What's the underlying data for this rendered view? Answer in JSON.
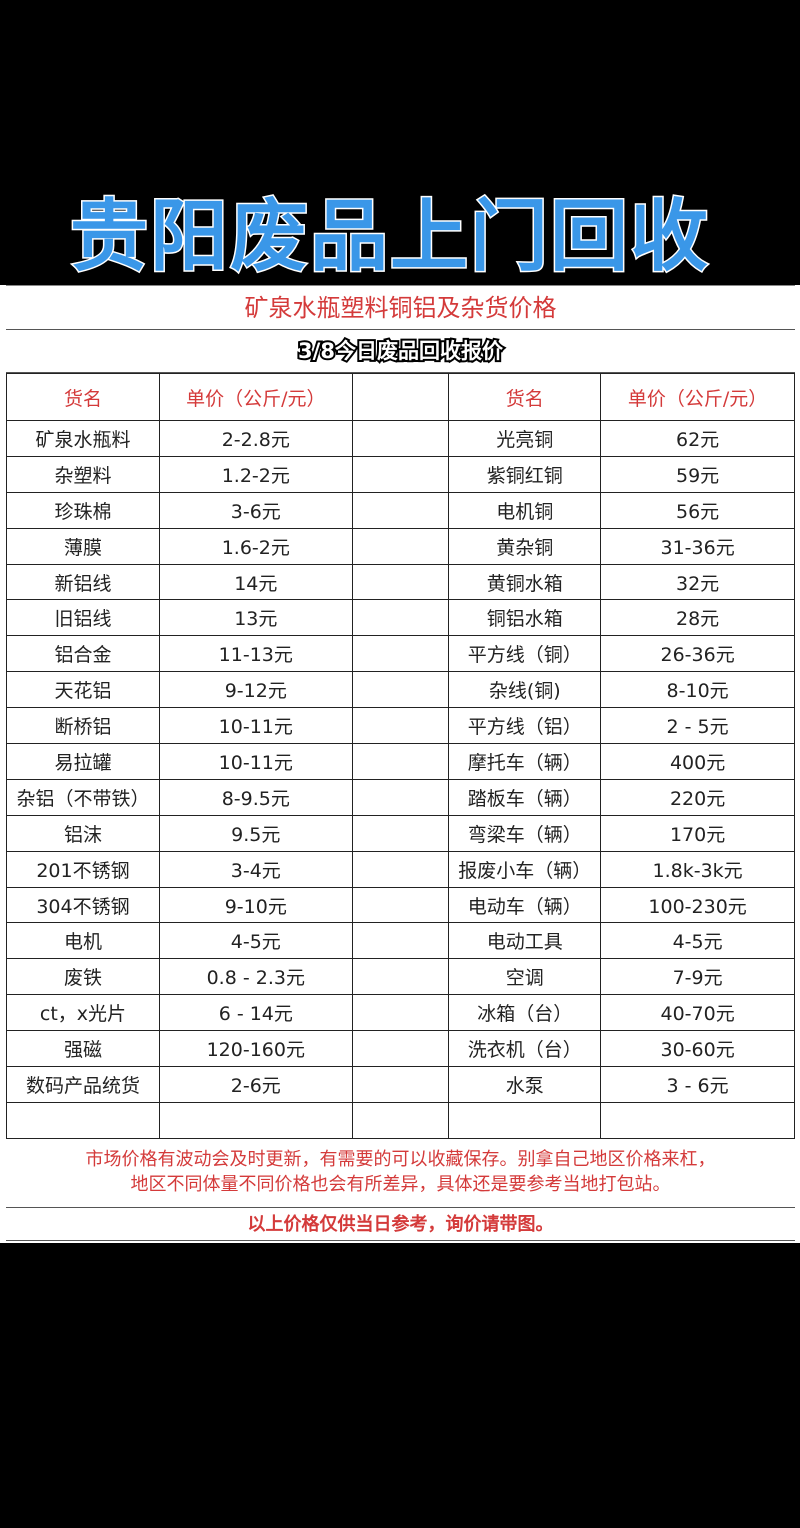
{
  "banner": "贵阳废品上门回收",
  "title": "矿泉水瓶塑料铜铝及杂货价格",
  "subtitle": "3/8今日废品回收报价",
  "headers": [
    "货名",
    "单价（公斤/元）",
    "",
    "货名",
    "单价（公斤/元）"
  ],
  "rows": [
    [
      "矿泉水瓶料",
      "2-2.8元",
      "光亮铜",
      "62元"
    ],
    [
      "杂塑料",
      "1.2-2元",
      "紫铜红铜",
      "59元"
    ],
    [
      "珍珠棉",
      "3-6元",
      "电机铜",
      "56元"
    ],
    [
      "薄膜",
      "1.6-2元",
      "黄杂铜",
      "31-36元"
    ],
    [
      "新铝线",
      "14元",
      "黄铜水箱",
      "32元"
    ],
    [
      "旧铝线",
      "13元",
      "铜铝水箱",
      "28元"
    ],
    [
      "铝合金",
      "11-13元",
      "平方线（铜）",
      "26-36元"
    ],
    [
      "天花铝",
      "9-12元",
      "杂线(铜)",
      "8-10元"
    ],
    [
      "断桥铝",
      "10-11元",
      "平方线（铝）",
      "2 - 5元"
    ],
    [
      "易拉罐",
      "10-11元",
      "摩托车（辆）",
      "400元"
    ],
    [
      "杂铝（不带铁）",
      "8-9.5元",
      "踏板车（辆）",
      "220元"
    ],
    [
      "铝沫",
      "9.5元",
      "弯梁车（辆）",
      "170元"
    ],
    [
      "201不锈钢",
      "3-4元",
      "报废小车（辆）",
      "1.8k-3k元"
    ],
    [
      "304不锈钢",
      "9-10元",
      "电动车（辆）",
      "100-230元"
    ],
    [
      "电机",
      "4-5元",
      "电动工具",
      "4-5元"
    ],
    [
      "废铁",
      "0.8 - 2.3元",
      "空调",
      "7-9元"
    ],
    [
      "ct，x光片",
      "6 - 14元",
      "冰箱（台）",
      "40-70元"
    ],
    [
      "强磁",
      "120-160元",
      "洗衣机（台）",
      "30-60元"
    ],
    [
      "数码产品统货",
      "2-6元",
      "水泵",
      "3 - 6元"
    ],
    [
      "",
      "",
      "",
      ""
    ]
  ],
  "note_line1": "市场价格有波动会及时更新，有需要的可以收藏保存。别拿自己地区价格来杠，",
  "note_line2": "地区不同体量不同价格也会有所差异，具体还是要参考当地打包站。",
  "final": "以上价格仅供当日参考，询价请带图。",
  "colors": {
    "banner": "#3a97e8",
    "red_text": "#d43a3a"
  }
}
